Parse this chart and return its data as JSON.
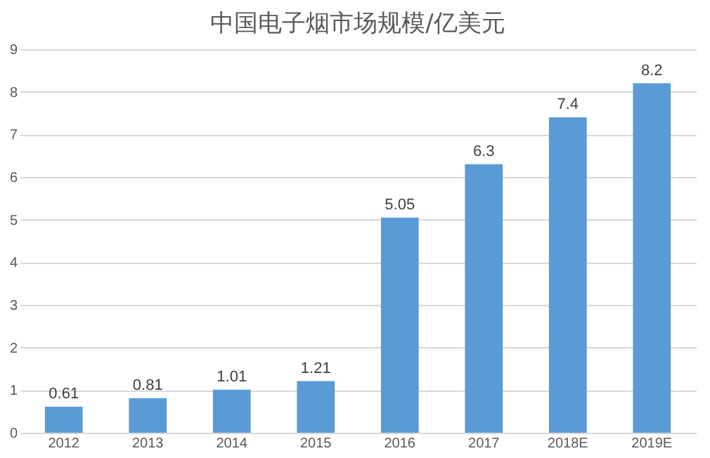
{
  "chart_data": {
    "type": "bar",
    "title": "中国电子烟市场规模/亿美元",
    "categories": [
      "2012",
      "2013",
      "2014",
      "2015",
      "2016",
      "2017",
      "2018E",
      "2019E"
    ],
    "values": [
      0.61,
      0.81,
      1.01,
      1.21,
      5.05,
      6.3,
      7.4,
      8.2
    ],
    "color": "#5b9bd5",
    "ylim": [
      0,
      9
    ],
    "yticks": [
      0,
      1,
      2,
      3,
      4,
      5,
      6,
      7,
      8,
      9
    ],
    "grid": "y",
    "data_labels": true
  }
}
